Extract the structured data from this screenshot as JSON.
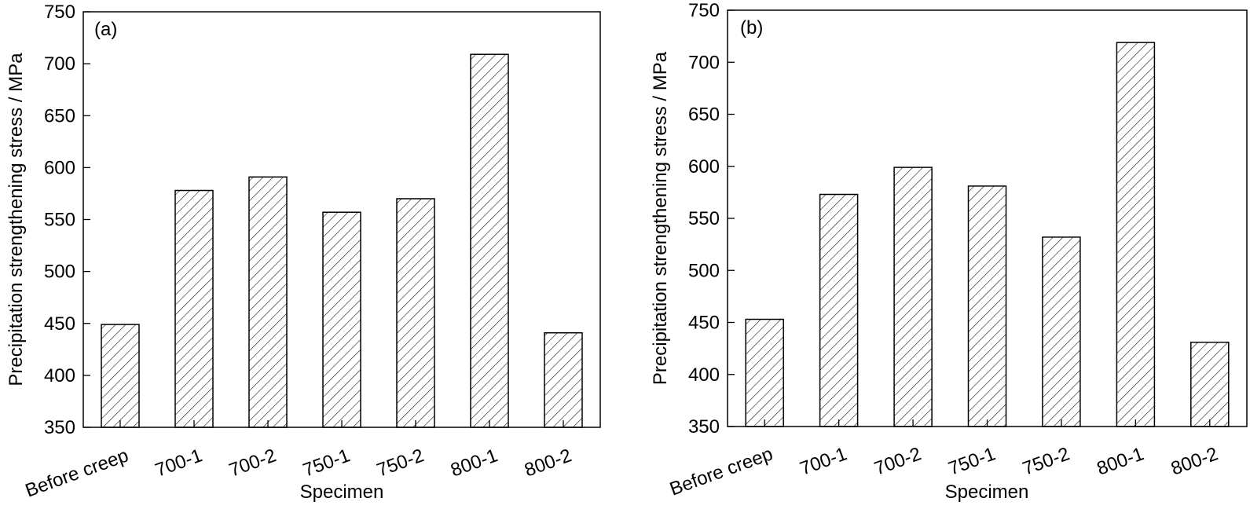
{
  "chart_data": [
    {
      "type": "bar",
      "panel_label": "(a)",
      "categories": [
        "Before creep",
        "700-1",
        "700-2",
        "750-1",
        "750-2",
        "800-1",
        "800-2"
      ],
      "values": [
        449,
        578,
        591,
        557,
        570,
        709,
        441
      ],
      "xlabel": "Specimen",
      "ylabel": "Precipitation strengthening stress / MPa",
      "ylim": [
        350,
        750
      ],
      "yticks": [
        350,
        400,
        450,
        500,
        550,
        600,
        650,
        700,
        750
      ],
      "grid": false,
      "bar_fill": "hatched"
    },
    {
      "type": "bar",
      "panel_label": "(b)",
      "categories": [
        "Before creep",
        "700-1",
        "700-2",
        "750-1",
        "750-2",
        "800-1",
        "800-2"
      ],
      "values": [
        453,
        573,
        599,
        581,
        532,
        719,
        431
      ],
      "xlabel": "Specimen",
      "ylabel": "Precipitation strengthening stress / MPa",
      "ylim": [
        350,
        750
      ],
      "yticks": [
        350,
        400,
        450,
        500,
        550,
        600,
        650,
        700,
        750
      ],
      "grid": false,
      "bar_fill": "hatched"
    }
  ],
  "colors": {
    "bar_stroke": "#000000",
    "hatch": "#000000",
    "background": "#ffffff"
  }
}
